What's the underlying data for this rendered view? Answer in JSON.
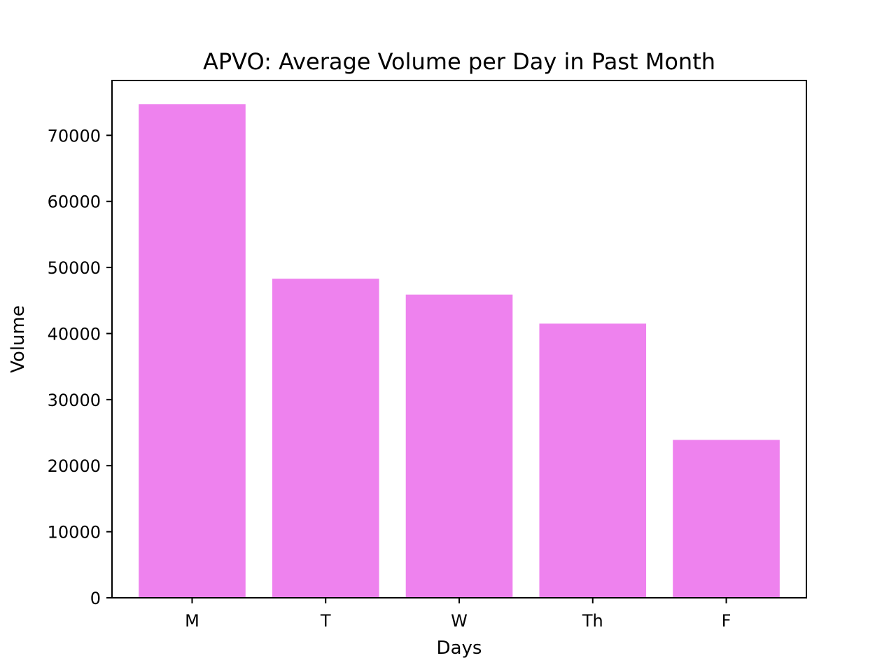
{
  "chart_data": {
    "type": "bar",
    "title": "APVO: Average Volume per Day in Past Month",
    "xlabel": "Days",
    "ylabel": "Volume",
    "categories": [
      "M",
      "T",
      "W",
      "Th",
      "F"
    ],
    "values": [
      74700,
      48300,
      45900,
      41500,
      23900
    ],
    "ylim": [
      0,
      78300
    ],
    "yticks": [
      0,
      10000,
      20000,
      30000,
      40000,
      50000,
      60000,
      70000
    ],
    "ytick_labels": [
      "0",
      "10000",
      "20000",
      "30000",
      "40000",
      "50000",
      "60000",
      "70000"
    ],
    "bar_color": "#ee82ee",
    "grid": false,
    "legend": "none"
  }
}
